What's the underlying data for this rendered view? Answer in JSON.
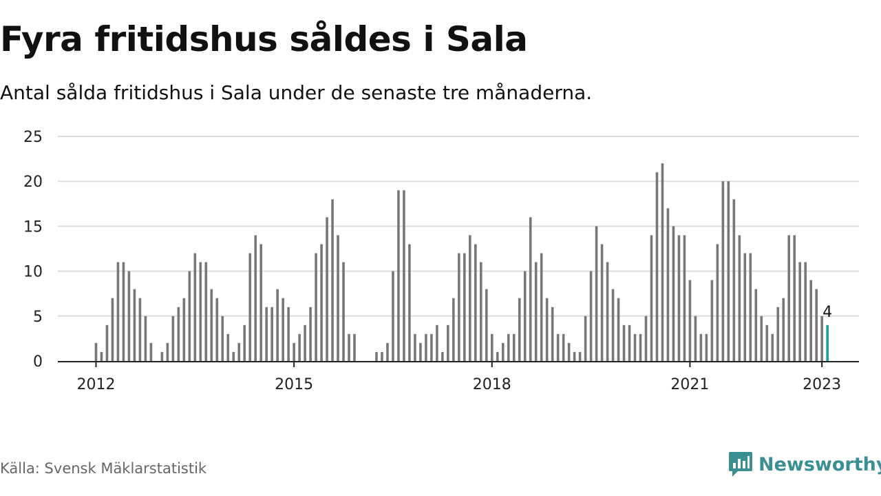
{
  "header": {
    "title": "Fyra fritidshus såldes i Sala",
    "subtitle": "Antal sålda fritidshus i Sala under de senaste tre månaderna."
  },
  "footer": {
    "source": "Källa: Svensk Mäklarstatistik",
    "brand": "Newsworthy"
  },
  "colors": {
    "bar": "#777777",
    "highlight": "#1a9e9e",
    "grid": "#dddddd",
    "axis": "#222222",
    "brand": "#3a8f92"
  },
  "icons": {
    "brand": "newsworthy-logo-icon"
  },
  "chart_data": {
    "type": "bar",
    "title": "Fyra fritidshus såldes i Sala",
    "subtitle": "Antal sålda fritidshus i Sala under de senaste tre månaderna.",
    "x_start": "2012-01",
    "x_end": "2023-01",
    "x_ticks": [
      "2012",
      "2015",
      "2018",
      "2021",
      "2023"
    ],
    "y_ticks": [
      0,
      5,
      10,
      15,
      20,
      25
    ],
    "ylim": [
      0,
      25
    ],
    "grid": true,
    "series": [
      {
        "values": [
          2,
          1,
          4,
          7,
          11,
          11,
          10,
          8,
          7,
          5,
          2,
          0,
          1,
          2,
          5,
          6,
          7,
          10,
          12,
          11,
          11,
          8,
          7,
          5,
          3,
          1,
          2,
          4,
          12,
          14,
          13,
          6,
          6,
          8,
          7,
          6,
          2,
          3,
          4,
          6,
          12,
          13,
          16,
          18,
          14,
          11,
          3,
          3,
          0,
          0,
          0,
          1,
          1,
          2,
          10,
          19,
          19,
          13,
          3,
          2,
          3,
          3,
          4,
          1,
          4,
          7,
          12,
          12,
          14,
          13,
          11,
          8,
          3,
          1,
          2,
          3,
          3,
          7,
          10,
          16,
          11,
          12,
          7,
          6,
          3,
          3,
          2,
          1,
          1,
          5,
          10,
          15,
          13,
          11,
          8,
          7,
          4,
          4,
          3,
          3,
          5,
          14,
          21,
          22,
          17,
          15,
          14,
          14,
          9,
          5,
          3,
          3,
          9,
          13,
          20,
          20,
          18,
          14,
          12,
          12,
          8,
          5,
          4,
          3,
          6,
          7,
          14,
          14,
          11,
          11,
          9,
          8,
          5,
          4
        ]
      }
    ],
    "highlight": {
      "index": 133,
      "value": 4,
      "label": "4"
    }
  }
}
